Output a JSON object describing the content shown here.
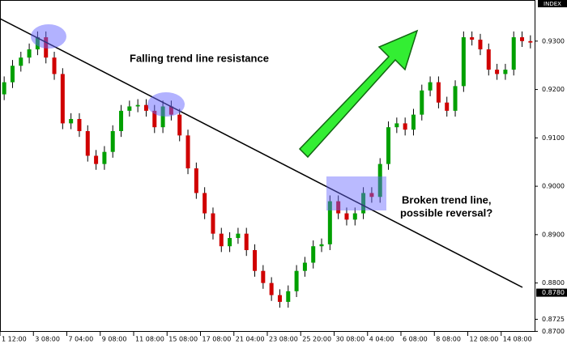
{
  "chart_data": {
    "type": "candlestick",
    "axis_label": "INDEX",
    "annotations": [
      "Falling trend line resistance",
      "Broken trend line,",
      "possible reversal?"
    ],
    "categories": [
      "1 12:00",
      null,
      null,
      null,
      "3 08:00",
      null,
      null,
      null,
      "7 04:00",
      null,
      null,
      null,
      "9 08:00",
      null,
      null,
      null,
      "11 08:00",
      null,
      null,
      null,
      "15 08:00",
      null,
      null,
      null,
      "17 08:00",
      null,
      null,
      null,
      "21 04:00",
      null,
      null,
      null,
      "23 08:00",
      null,
      null,
      null,
      "25 20:00",
      null,
      null,
      null,
      "30 08:00",
      null,
      null,
      null,
      "4 04:00",
      null,
      null,
      null,
      "6 08:00",
      null,
      null,
      null,
      "8 08:00",
      null,
      null,
      null,
      "12 08:00",
      null,
      null,
      null,
      "14 08:00",
      null,
      null,
      null
    ],
    "open": [
      0.919,
      0.9215,
      0.9249,
      0.9266,
      0.9283,
      0.9308,
      0.9266,
      0.9232,
      0.913,
      0.9139,
      0.9114,
      0.9063,
      0.9046,
      0.9071,
      0.9114,
      0.9156,
      0.9165,
      0.9168,
      0.9156,
      0.9122,
      0.9165,
      0.9148,
      0.9105,
      0.9037,
      0.8986,
      0.8944,
      0.8902,
      0.8876,
      0.8893,
      0.8902,
      0.8868,
      0.8825,
      0.88,
      0.8775,
      0.8761,
      0.8783,
      0.8825,
      0.8842,
      0.8876,
      0.888,
      0.8969,
      0.8944,
      0.8931,
      0.8944,
      0.8986,
      0.8978,
      0.9046,
      0.9122,
      0.913,
      0.9117,
      0.9148,
      0.9198,
      0.9215,
      0.9173,
      0.9156,
      0.9207,
      0.9308,
      0.9303,
      0.9283,
      0.9241,
      0.9232,
      0.9241,
      0.9308,
      0.93
    ],
    "high": [
      0.9227,
      0.9261,
      0.9278,
      0.9295,
      0.932,
      0.932,
      0.9278,
      0.9244,
      0.9151,
      0.9151,
      0.9126,
      0.9075,
      0.9083,
      0.9126,
      0.9168,
      0.9177,
      0.918,
      0.918,
      0.9168,
      0.9177,
      0.9177,
      0.916,
      0.9117,
      0.9049,
      0.8998,
      0.8956,
      0.8914,
      0.8905,
      0.8914,
      0.8914,
      0.888,
      0.8837,
      0.8812,
      0.8787,
      0.8795,
      0.8837,
      0.8854,
      0.8888,
      0.8892,
      0.8981,
      0.8981,
      0.8956,
      0.8956,
      0.8998,
      0.8998,
      0.9058,
      0.9134,
      0.9142,
      0.9142,
      0.916,
      0.921,
      0.9227,
      0.9227,
      0.9185,
      0.9219,
      0.932,
      0.932,
      0.9315,
      0.9295,
      0.9253,
      0.9253,
      0.932,
      0.932,
      0.9312
    ],
    "low": [
      0.9178,
      0.9203,
      0.9237,
      0.9254,
      0.9271,
      0.9254,
      0.922,
      0.9118,
      0.9118,
      0.9102,
      0.9051,
      0.9034,
      0.9034,
      0.9059,
      0.9102,
      0.9144,
      0.9153,
      0.9144,
      0.911,
      0.911,
      0.9136,
      0.9093,
      0.9025,
      0.8974,
      0.8932,
      0.889,
      0.8864,
      0.8864,
      0.8881,
      0.8856,
      0.8813,
      0.8788,
      0.8763,
      0.8749,
      0.8749,
      0.8771,
      0.8813,
      0.883,
      0.8864,
      0.8868,
      0.8932,
      0.8919,
      0.8919,
      0.8932,
      0.8966,
      0.8966,
      0.9034,
      0.911,
      0.9105,
      0.9105,
      0.9136,
      0.9186,
      0.9161,
      0.9144,
      0.9144,
      0.9195,
      0.9291,
      0.9271,
      0.9229,
      0.922,
      0.922,
      0.9229,
      0.9288,
      0.9285
    ],
    "close": [
      0.9215,
      0.9249,
      0.9266,
      0.9283,
      0.9308,
      0.9266,
      0.9232,
      0.913,
      0.9139,
      0.9114,
      0.9063,
      0.9046,
      0.9071,
      0.9114,
      0.9156,
      0.9165,
      0.9168,
      0.9156,
      0.9122,
      0.9165,
      0.9148,
      0.9105,
      0.9037,
      0.8986,
      0.8944,
      0.8902,
      0.8876,
      0.8893,
      0.8902,
      0.8868,
      0.8825,
      0.88,
      0.8775,
      0.8761,
      0.8783,
      0.8825,
      0.8842,
      0.8876,
      0.888,
      0.8969,
      0.8944,
      0.8931,
      0.8944,
      0.8986,
      0.8978,
      0.9046,
      0.9122,
      0.913,
      0.9117,
      0.9148,
      0.9198,
      0.9215,
      0.9173,
      0.9156,
      0.9207,
      0.9308,
      0.9303,
      0.9283,
      0.9241,
      0.9232,
      0.9241,
      0.9308,
      0.93,
      0.9297
    ],
    "up_color": "#00a000",
    "down_color": "#d00000",
    "ylim": [
      0.8699,
      0.9385
    ],
    "yticks": [
      {
        "value": 0.93,
        "label": "0.9300"
      },
      {
        "value": 0.92,
        "label": "0.9200"
      },
      {
        "value": 0.91,
        "label": "0.9100"
      },
      {
        "value": 0.9,
        "label": "0.9000"
      },
      {
        "value": 0.89,
        "label": "0.8900"
      },
      {
        "value": 0.88,
        "label": "0.8800"
      },
      {
        "value": 0.8725,
        "label": "0.8725"
      },
      {
        "value": 0.87,
        "label": "0.8700"
      }
    ],
    "current_price": {
      "value": 0.878,
      "label": "0.8780"
    }
  }
}
